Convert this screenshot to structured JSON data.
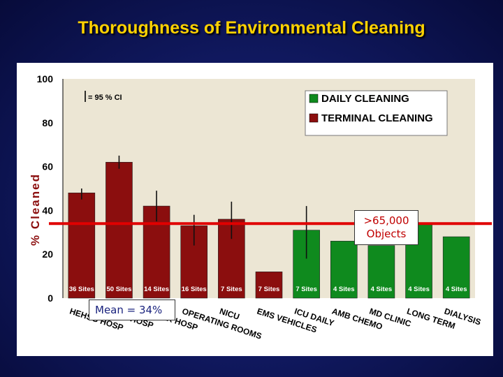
{
  "title": "Thoroughness of Environmental Cleaning",
  "callout": {
    "line1": ">65,000",
    "line2": "Objects"
  },
  "mean_label": "Mean = 34%",
  "colors": {
    "daily": "#0f8a1e",
    "terminal": "#8b0e0e",
    "plot_bg": "#ece6d4",
    "mean_line": "#e00000",
    "title": "#ffd200"
  },
  "chart_data": {
    "type": "bar",
    "ylabel": "% Cleaned",
    "ylim": [
      0,
      100
    ],
    "yticks": [
      0,
      20,
      40,
      60,
      80,
      100
    ],
    "ci_legend": "| = 95 % CI",
    "legend": [
      {
        "name": "DAILY CLEANING",
        "color": "#0f8a1e"
      },
      {
        "name": "TERMINAL CLEANING",
        "color": "#8b0e0e"
      }
    ],
    "mean_value": 34,
    "categories": [
      "HEHSG HOSP",
      "IOWA HOSP",
      "OTHER HOSP",
      "OPERATING ROOMS",
      "NICU",
      "EMS VEHICLES",
      "ICU DAILY",
      "AMB CHEMO",
      "MD CLINIC",
      "LONG TERM",
      "DIALYSIS"
    ],
    "values": [
      48,
      62,
      42,
      33,
      36,
      12,
      31,
      26,
      24,
      34,
      28
    ],
    "series_type": [
      "terminal",
      "terminal",
      "terminal",
      "terminal",
      "terminal",
      "terminal",
      "daily",
      "daily",
      "daily",
      "daily",
      "daily"
    ],
    "site_labels": [
      "36 Sites",
      "50 Sites",
      "14 Sites",
      "16 Sites",
      "7 Sites",
      "7 Sites",
      "7 Sites",
      "4 Sites",
      "4 Sites",
      "4 Sites",
      "4 Sites"
    ],
    "ci": [
      [
        45,
        50
      ],
      [
        59,
        65
      ],
      [
        35,
        49
      ],
      [
        24,
        38
      ],
      [
        27,
        44
      ],
      null,
      [
        18,
        42
      ],
      null,
      null,
      null,
      null
    ]
  }
}
